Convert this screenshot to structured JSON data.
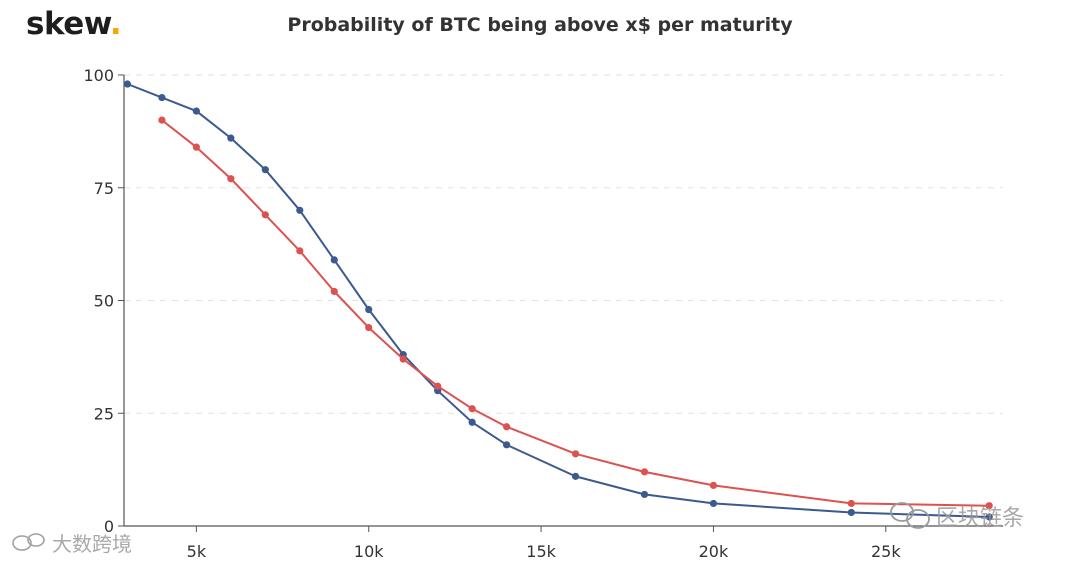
{
  "brand": {
    "name": "skew",
    "dot": "."
  },
  "watermarks": {
    "left": "大数跨境",
    "right": "区块链条"
  },
  "colors": {
    "blue": "#3b5a8e",
    "red": "#dc5250",
    "grid": "#e2e2e2",
    "axis": "#555555"
  },
  "chart_data": {
    "type": "line",
    "title": "Probability of BTC being above x$ per maturity",
    "xlabel": "",
    "ylabel": "",
    "xlim": [
      2900,
      28400
    ],
    "ylim": [
      0,
      100
    ],
    "x_ticks": [
      5000,
      10000,
      15000,
      20000,
      25000
    ],
    "x_tick_labels": [
      "5k",
      "10k",
      "15k",
      "20k",
      "25k"
    ],
    "y_ticks": [
      0,
      25,
      50,
      75,
      100
    ],
    "y_tick_labels": [
      "0",
      "25",
      "50",
      "75",
      "100"
    ],
    "grid": "horizontal dashed",
    "legend": "none",
    "series": [
      {
        "name": "blue",
        "color": "#3b5a8e",
        "x": [
          3000,
          4000,
          5000,
          6000,
          7000,
          8000,
          9000,
          10000,
          11000,
          12000,
          13000,
          14000,
          16000,
          18000,
          20000,
          24000,
          28000
        ],
        "values": [
          98,
          95,
          92,
          86,
          79,
          70,
          59,
          48,
          38,
          30,
          23,
          18,
          11,
          7,
          5,
          3,
          2
        ]
      },
      {
        "name": "red",
        "color": "#dc5250",
        "x": [
          4000,
          5000,
          6000,
          7000,
          8000,
          9000,
          10000,
          11000,
          12000,
          13000,
          14000,
          16000,
          18000,
          20000,
          24000,
          28000
        ],
        "values": [
          90,
          84,
          77,
          69,
          61,
          52,
          44,
          37,
          31,
          26,
          22,
          16,
          12,
          9,
          5,
          4.5
        ]
      }
    ]
  }
}
